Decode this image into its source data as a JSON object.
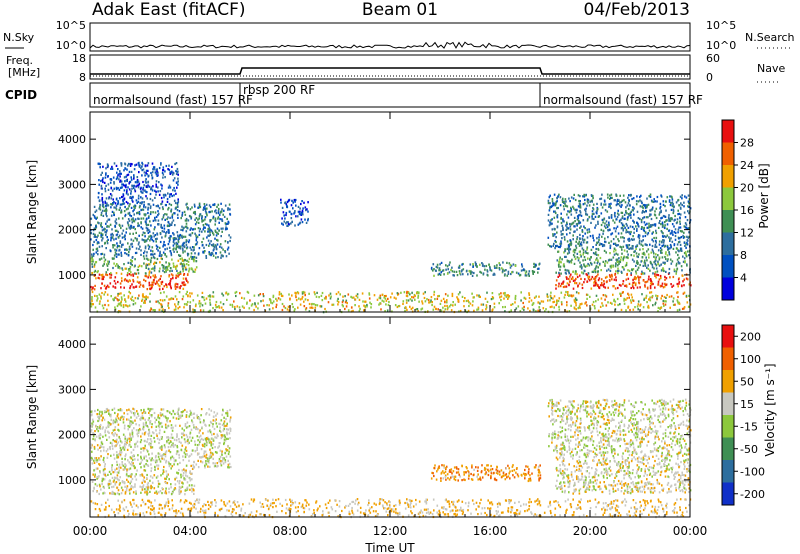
{
  "header": {
    "station": "Adak East (fitACF)",
    "beam": "Beam 01",
    "date": "04/Feb/2013"
  },
  "summary_panels": {
    "nsky_label": "N.Sky",
    "nsky_ticks": [
      "10^5",
      "10^0"
    ],
    "nsearch_label": "N.Search",
    "nsearch_ticks": [
      "10^5",
      "10^0"
    ],
    "freq_label_1": "Freq.",
    "freq_label_2": "[MHz]",
    "freq_ticks": [
      "18",
      "8"
    ],
    "nave_label": "Nave",
    "nave_ticks": [
      "60",
      "0"
    ],
    "cpid_label": "CPID",
    "cpid_segments": [
      {
        "name": "normalsound (fast) 157 RF",
        "start_h": 0,
        "end_h": 6
      },
      {
        "name": "rbsp 200 RF",
        "start_h": 6,
        "end_h": 18
      },
      {
        "name": "normalsound (fast) 157 RF",
        "start_h": 18,
        "end_h": 24
      }
    ]
  },
  "chart_data": [
    {
      "type": "heatmap",
      "name": "Power",
      "ylabel": "Slant Range [km]",
      "ylim": [
        180,
        4600
      ],
      "yticks": [
        1000,
        2000,
        3000,
        4000
      ],
      "xlim": [
        0,
        24
      ],
      "colorbar": {
        "label": "Power [dB]",
        "ticks": [
          "4",
          "8",
          "12",
          "16",
          "20",
          "24",
          "28"
        ],
        "colors": [
          "#0000dd",
          "#0050c0",
          "#2d6e9e",
          "#3f8f54",
          "#8cc83c",
          "#f0a000",
          "#f06000",
          "#e81010"
        ]
      },
      "regions": [
        {
          "t0": 0.0,
          "t1": 3.9,
          "r0": 700,
          "r1": 1050,
          "level": 28
        },
        {
          "t0": 0.0,
          "t1": 4.3,
          "r0": 1050,
          "r1": 1400,
          "level": 16
        },
        {
          "t0": 0.0,
          "t1": 5.6,
          "r0": 1400,
          "r1": 2600,
          "level": 10
        },
        {
          "t0": 0.3,
          "t1": 3.5,
          "r0": 2600,
          "r1": 3500,
          "level": 6
        },
        {
          "t0": 7.6,
          "t1": 8.7,
          "r0": 2100,
          "r1": 2700,
          "level": 6
        },
        {
          "t0": 13.6,
          "t1": 18.0,
          "r0": 1000,
          "r1": 1300,
          "level": 12
        },
        {
          "t0": 18.6,
          "t1": 24.0,
          "r0": 720,
          "r1": 1050,
          "level": 28
        },
        {
          "t0": 18.6,
          "t1": 24.0,
          "r0": 1050,
          "r1": 1600,
          "level": 14
        },
        {
          "t0": 18.3,
          "t1": 24.0,
          "r0": 1600,
          "r1": 2800,
          "level": 10
        },
        {
          "t0": 0.0,
          "t1": 24.0,
          "r0": 200,
          "r1": 650,
          "level": 20
        }
      ]
    },
    {
      "type": "heatmap",
      "name": "Velocity",
      "ylabel": "Slant Range [km]",
      "ylim": [
        180,
        4600
      ],
      "yticks": [
        1000,
        2000,
        3000,
        4000
      ],
      "xlim": [
        0,
        24
      ],
      "xlabel": "Time UT",
      "xticks": [
        "00:00",
        "04:00",
        "08:00",
        "12:00",
        "16:00",
        "20:00",
        "00:00"
      ],
      "colorbar": {
        "label": "Velocity [m s⁻¹]",
        "ticks": [
          "200",
          "100",
          "50",
          "15",
          "-15",
          "-50",
          "-100",
          "-200"
        ],
        "colors": [
          "#1030c8",
          "#2d6e9e",
          "#3f8f54",
          "#8cc83c",
          "#c8c8c0",
          "#f0a000",
          "#f06000",
          "#e81010"
        ]
      },
      "regions": [
        {
          "t0": 0.0,
          "t1": 4.2,
          "r0": 700,
          "r1": 1300,
          "level": 0
        },
        {
          "t0": 0.0,
          "t1": 5.6,
          "r0": 1300,
          "r1": 2600,
          "level": 5
        },
        {
          "t0": 13.6,
          "t1": 18.0,
          "r0": 1000,
          "r1": 1350,
          "level": -40
        },
        {
          "t0": 18.6,
          "t1": 24.0,
          "r0": 720,
          "r1": 1600,
          "level": 0
        },
        {
          "t0": 18.3,
          "t1": 24.0,
          "r0": 1600,
          "r1": 2800,
          "level": 5
        },
        {
          "t0": 0.0,
          "t1": 24.0,
          "r0": 200,
          "r1": 600,
          "level": -20
        }
      ]
    }
  ]
}
